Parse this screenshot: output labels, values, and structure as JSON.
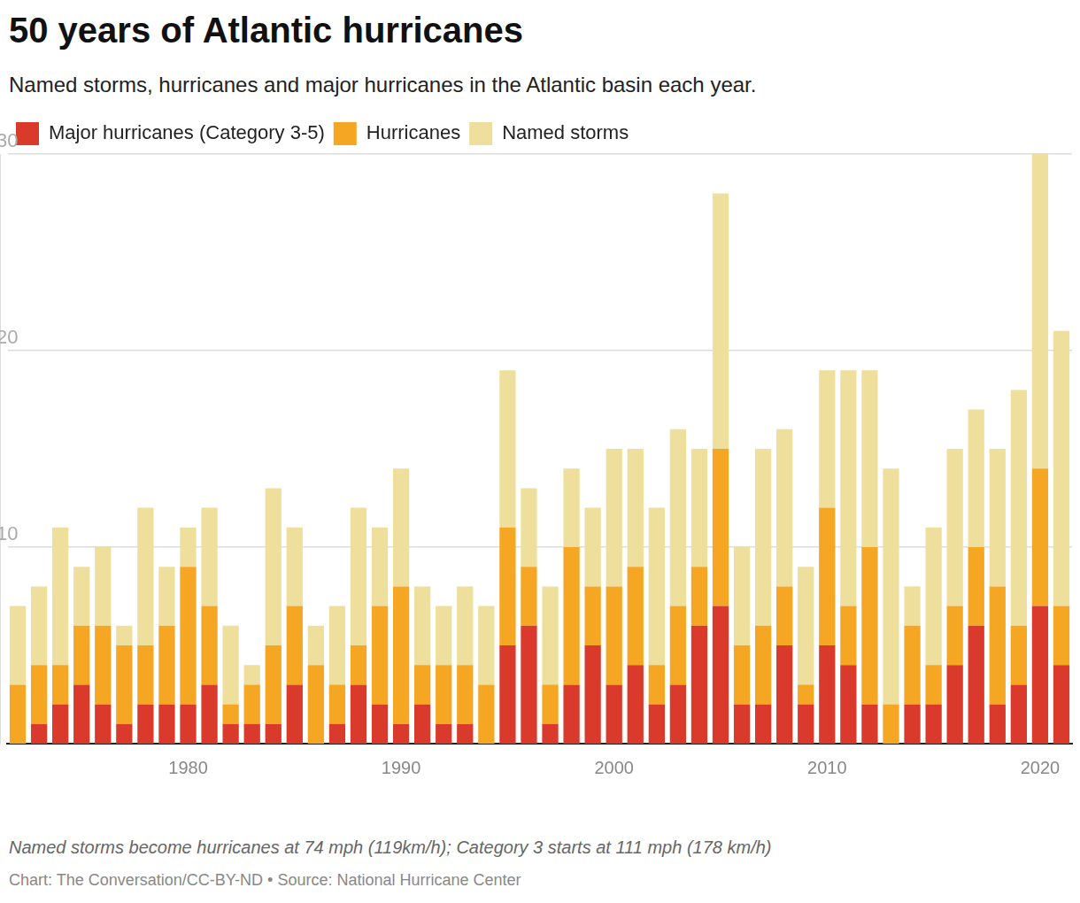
{
  "chart_data": {
    "type": "bar",
    "title": "50 years of Atlantic hurricanes",
    "subtitle": "Named storms, hurricanes and major hurricanes in the Atlantic basin each year.",
    "caption": "Named storms become hurricanes at 74 mph (119km/h); Category 3 starts at 111 mph (178 km/h)",
    "source": "Chart: The Conversation/CC-BY-ND • Source: National Hurricane Center",
    "stacked": true,
    "grid": true,
    "legend": "top-left",
    "categories": [
      null,
      null,
      null,
      null,
      null,
      null,
      null,
      null,
      "1980",
      null,
      null,
      null,
      null,
      null,
      null,
      null,
      null,
      null,
      "1990",
      null,
      null,
      null,
      null,
      null,
      null,
      null,
      null,
      null,
      "2000",
      null,
      null,
      null,
      null,
      null,
      null,
      null,
      null,
      null,
      "2010",
      null,
      null,
      null,
      null,
      null,
      null,
      null,
      null,
      null,
      "2020",
      null
    ],
    "series": [
      {
        "name": "Major hurricanes (Category 3-5)",
        "color": "#d93a2b",
        "values": [
          0,
          1,
          2,
          3,
          2,
          1,
          2,
          2,
          2,
          3,
          1,
          1,
          1,
          3,
          0,
          1,
          3,
          2,
          1,
          2,
          1,
          1,
          0,
          5,
          6,
          1,
          3,
          5,
          3,
          4,
          2,
          3,
          6,
          7,
          2,
          2,
          5,
          2,
          5,
          4,
          2,
          0,
          2,
          2,
          4,
          6,
          2,
          3,
          7,
          4
        ]
      },
      {
        "name": "Hurricanes",
        "color": "#f5a623",
        "values": [
          3,
          3,
          2,
          3,
          4,
          4,
          3,
          4,
          7,
          4,
          1,
          2,
          4,
          4,
          4,
          2,
          2,
          5,
          7,
          2,
          3,
          3,
          3,
          6,
          3,
          2,
          7,
          3,
          5,
          5,
          2,
          4,
          3,
          8,
          3,
          4,
          3,
          1,
          7,
          3,
          8,
          2,
          4,
          2,
          3,
          4,
          6,
          3,
          7,
          3
        ]
      },
      {
        "name": "Named storms",
        "color": "#eee09c",
        "values": [
          4,
          4,
          7,
          3,
          4,
          1,
          7,
          3,
          2,
          5,
          4,
          1,
          8,
          4,
          2,
          4,
          7,
          4,
          6,
          4,
          3,
          4,
          4,
          8,
          4,
          5,
          4,
          4,
          7,
          6,
          8,
          9,
          6,
          13,
          5,
          9,
          8,
          6,
          7,
          12,
          9,
          12,
          2,
          7,
          8,
          7,
          7,
          12,
          16,
          14
        ]
      }
    ],
    "ylim": [
      0,
      30
    ],
    "yticks": [
      10,
      20,
      30
    ]
  }
}
